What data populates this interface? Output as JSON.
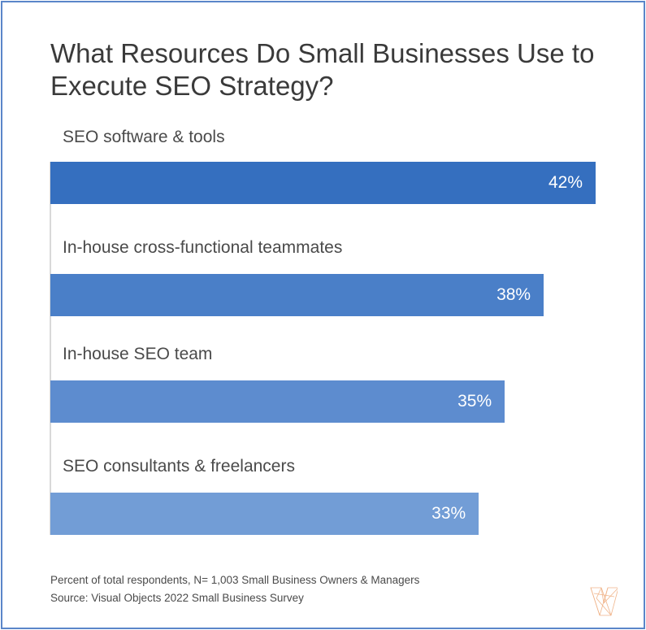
{
  "chart_data": {
    "type": "bar",
    "orientation": "horizontal",
    "title": "What Resources Do Small Businesses Use to Execute SEO Strategy?",
    "categories": [
      "SEO software & tools",
      "In-house cross-functional teammates",
      "In-house SEO team",
      "SEO consultants & freelancers"
    ],
    "values": [
      42,
      38,
      35,
      33
    ],
    "value_labels": [
      "42%",
      "38%",
      "35%",
      "33%"
    ],
    "colors": [
      "#356fbf",
      "#4a7fc8",
      "#5d8ccf",
      "#729dd6"
    ],
    "xlim": [
      0,
      42
    ],
    "grid": false
  },
  "footnotes": {
    "note": "Percent of total respondents, N= 1,003 Small Business Owners & Managers",
    "source": "Source: Visual Objects 2022 Small Business Survey"
  },
  "logo": {
    "name": "visual-objects-v-logo",
    "color": "#f0b48a"
  },
  "border_color": "#5b86c9"
}
